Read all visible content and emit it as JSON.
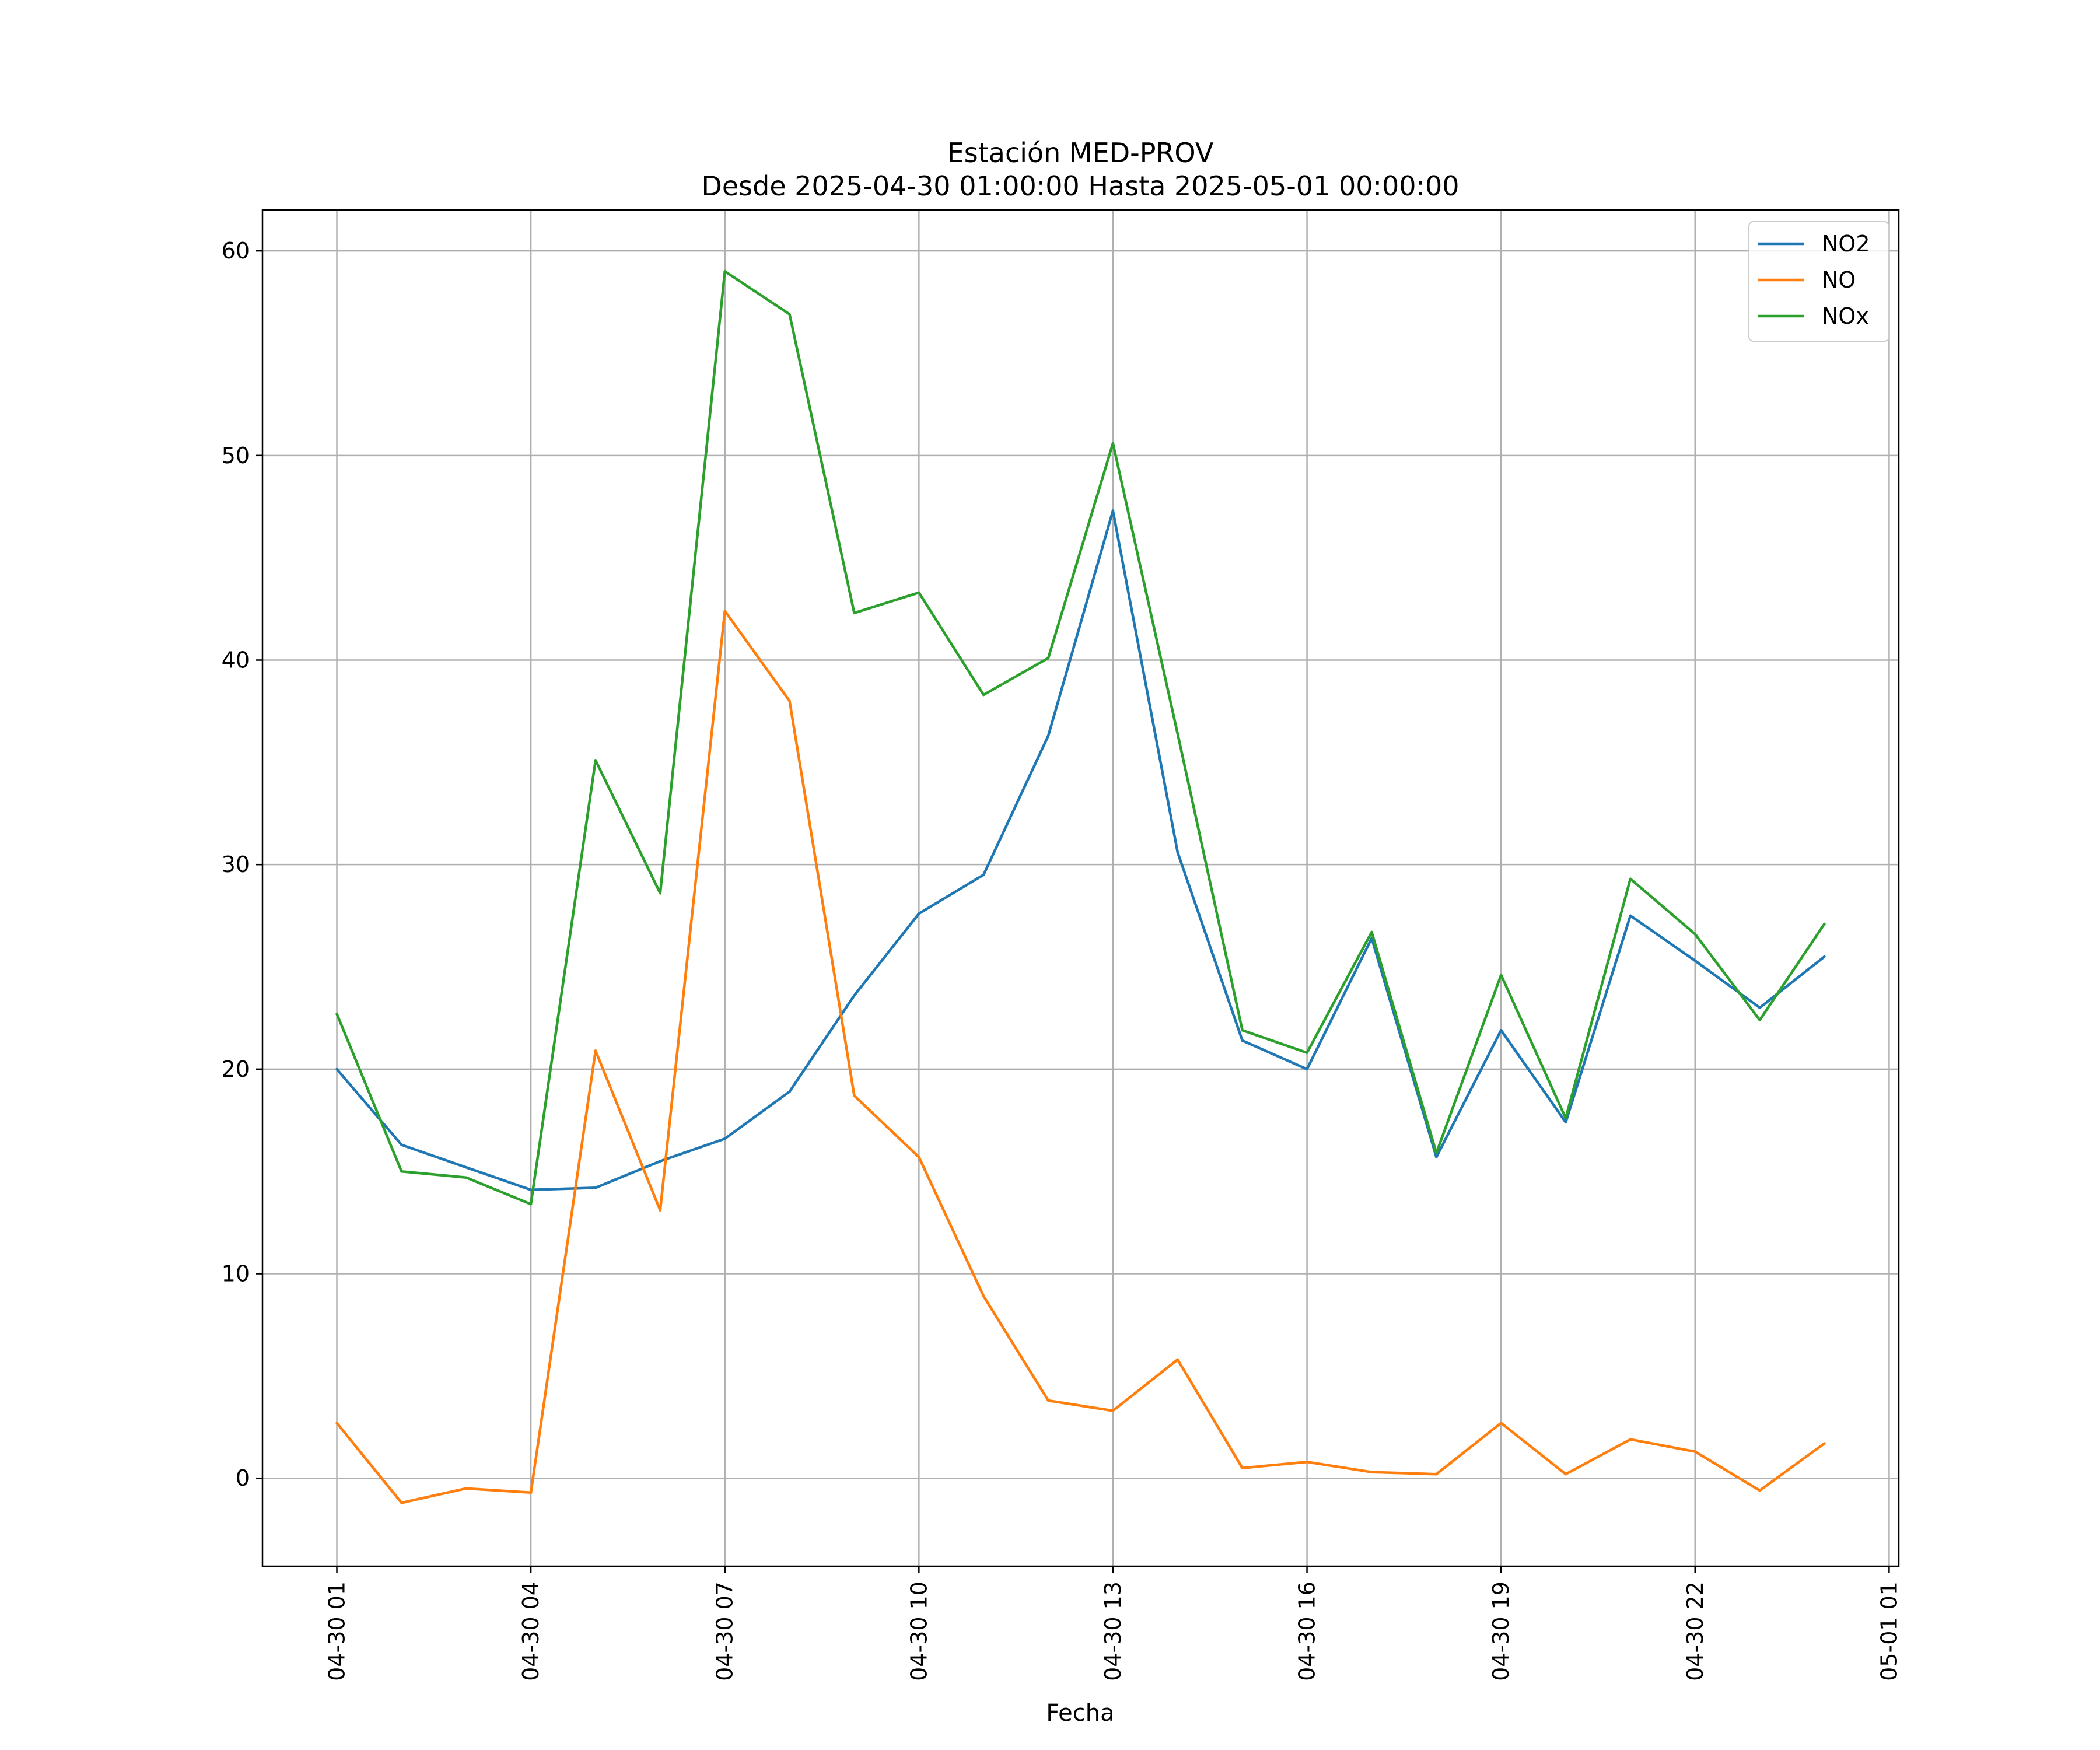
{
  "chart_data": {
    "type": "line",
    "title": "Estación MED-PROV",
    "subtitle": "Desde 2025-04-30 01:00:00 Hasta 2025-05-01 00:00:00",
    "xlabel": "Fecha",
    "ylabel": "",
    "grid": true,
    "legend_position": "top-right",
    "ylim": [
      -4.3,
      62
    ],
    "xlim": [
      "2025-04-29 23:51",
      "2025-05-01 01:09"
    ],
    "yticks": [
      0,
      10,
      20,
      30,
      40,
      50,
      60
    ],
    "xticks": [
      {
        "time": "2025-04-30 01:00",
        "label": "04-30 01"
      },
      {
        "time": "2025-04-30 04:00",
        "label": "04-30 04"
      },
      {
        "time": "2025-04-30 07:00",
        "label": "04-30 07"
      },
      {
        "time": "2025-04-30 10:00",
        "label": "04-30 10"
      },
      {
        "time": "2025-04-30 13:00",
        "label": "04-30 13"
      },
      {
        "time": "2025-04-30 16:00",
        "label": "04-30 16"
      },
      {
        "time": "2025-04-30 19:00",
        "label": "04-30 19"
      },
      {
        "time": "2025-04-30 22:00",
        "label": "04-30 22"
      },
      {
        "time": "2025-05-01 01:00",
        "label": "05-01 01"
      }
    ],
    "x": [
      "2025-04-30 01:00",
      "2025-04-30 02:00",
      "2025-04-30 03:00",
      "2025-04-30 04:00",
      "2025-04-30 05:00",
      "2025-04-30 06:00",
      "2025-04-30 07:00",
      "2025-04-30 08:00",
      "2025-04-30 09:00",
      "2025-04-30 10:00",
      "2025-04-30 11:00",
      "2025-04-30 12:00",
      "2025-04-30 13:00",
      "2025-04-30 14:00",
      "2025-04-30 15:00",
      "2025-04-30 16:00",
      "2025-04-30 17:00",
      "2025-04-30 18:00",
      "2025-04-30 19:00",
      "2025-04-30 20:00",
      "2025-04-30 21:00",
      "2025-04-30 22:00",
      "2025-04-30 23:00",
      "2025-05-01 00:00"
    ],
    "series": [
      {
        "name": "NO2",
        "color": "#1f77b4",
        "values": [
          20.0,
          16.3,
          15.2,
          14.1,
          14.2,
          15.5,
          16.6,
          18.9,
          23.6,
          27.6,
          29.5,
          36.3,
          47.3,
          30.6,
          21.4,
          20.0,
          26.4,
          15.7,
          21.9,
          17.4,
          27.5,
          25.3,
          23.0,
          25.5
        ]
      },
      {
        "name": "NO",
        "color": "#ff7f0e",
        "values": [
          2.7,
          -1.2,
          -0.5,
          -0.7,
          20.9,
          13.1,
          42.4,
          38.0,
          18.7,
          15.7,
          8.9,
          3.8,
          3.3,
          5.8,
          0.5,
          0.8,
          0.3,
          0.2,
          2.7,
          0.2,
          1.9,
          1.3,
          -0.6,
          1.7
        ]
      },
      {
        "name": "NOx",
        "color": "#2ca02c",
        "values": [
          22.7,
          15.0,
          14.7,
          13.4,
          35.1,
          28.6,
          59.0,
          56.9,
          42.3,
          43.3,
          38.3,
          40.1,
          50.6,
          36.4,
          21.9,
          20.8,
          26.7,
          15.9,
          24.6,
          17.6,
          29.3,
          26.6,
          22.4,
          27.1
        ]
      }
    ]
  }
}
